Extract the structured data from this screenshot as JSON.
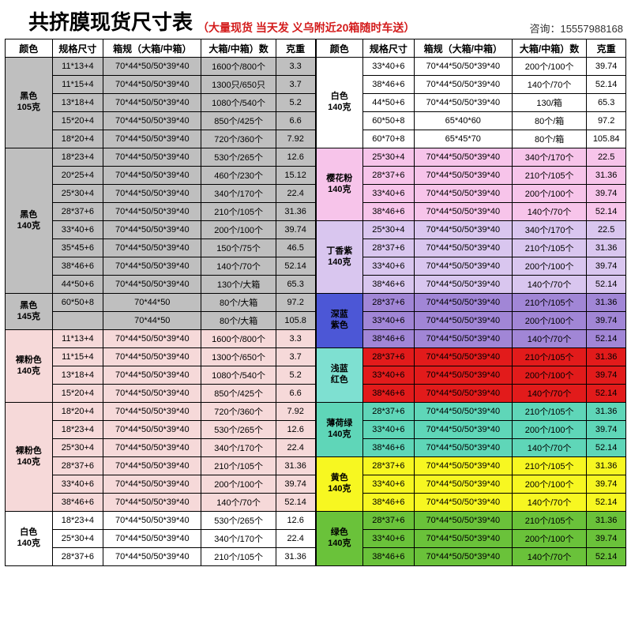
{
  "header": {
    "title": "共挤膜现货尺寸表",
    "subtitle": "（大量现货 当天发 义乌附近20箱随时车送）",
    "contact_label": "咨询：",
    "contact_phone": "15557988168"
  },
  "columns": [
    "颜色",
    "规格尺寸",
    "箱规（大箱/中箱）",
    "大箱/中箱）数",
    "克重"
  ],
  "col_widths_pct": [
    12,
    13,
    25,
    19,
    10
  ],
  "groups_left": [
    {
      "label": "黑色105克",
      "bg": "#bfbfbf",
      "rows": [
        [
          "11*13+4",
          "70*44*50/50*39*40",
          "1600个/800个",
          "3.3"
        ],
        [
          "11*15+4",
          "70*44*50/50*39*40",
          "1300只/650只",
          "3.7"
        ],
        [
          "13*18+4",
          "70*44*50/50*39*40",
          "1080个/540个",
          "5.2"
        ],
        [
          "15*20+4",
          "70*44*50/50*39*40",
          "850个/425个",
          "6.6"
        ],
        [
          "18*20+4",
          "70*44*50/50*39*40",
          "720个/360个",
          "7.92"
        ]
      ]
    },
    {
      "label": "黑色140克",
      "bg": "#bfbfbf",
      "rows": [
        [
          "18*23+4",
          "70*44*50/50*39*40",
          "530个/265个",
          "12.6"
        ],
        [
          "20*25+4",
          "70*44*50/50*39*40",
          "460个/230个",
          "15.12"
        ],
        [
          "25*30+4",
          "70*44*50/50*39*40",
          "340个/170个",
          "22.4"
        ],
        [
          "28*37+6",
          "70*44*50/50*39*40",
          "210个/105个",
          "31.36"
        ],
        [
          "33*40+6",
          "70*44*50/50*39*40",
          "200个/100个",
          "39.74"
        ],
        [
          "35*45+6",
          "70*44*50/50*39*40",
          "150个/75个",
          "46.5"
        ],
        [
          "38*46+6",
          "70*44*50/50*39*40",
          "140个/70个",
          "52.14"
        ],
        [
          "44*50+6",
          "70*44*50/50*39*40",
          "130个/大箱",
          "65.3"
        ]
      ]
    },
    {
      "label": "黑色145克",
      "bg": "#bfbfbf",
      "rows": [
        [
          "60*50+8",
          "70*44*50",
          "80个/大箱",
          "97.2"
        ],
        [
          "",
          "70*44*50",
          "80个/大箱",
          "105.8"
        ]
      ]
    },
    {
      "label": "裸粉色140克",
      "bg": "#f6d9d9",
      "rows": [
        [
          "11*13+4",
          "70*44*50/50*39*40",
          "1600个/800个",
          "3.3"
        ],
        [
          "11*15+4",
          "70*44*50/50*39*40",
          "1300个/650个",
          "3.7"
        ],
        [
          "13*18+4",
          "70*44*50/50*39*40",
          "1080个/540个",
          "5.2"
        ],
        [
          "15*20+4",
          "70*44*50/50*39*40",
          "850个/425个",
          "6.6"
        ]
      ]
    },
    {
      "label": "裸粉色140克",
      "bg": "#f6d9d9",
      "rows": [
        [
          "18*20+4",
          "70*44*50/50*39*40",
          "720个/360个",
          "7.92"
        ],
        [
          "18*23+4",
          "70*44*50/50*39*40",
          "530个/265个",
          "12.6"
        ],
        [
          "25*30+4",
          "70*44*50/50*39*40",
          "340个/170个",
          "22.4"
        ],
        [
          "28*37+6",
          "70*44*50/50*39*40",
          "210个/105个",
          "31.36"
        ],
        [
          "33*40+6",
          "70*44*50/50*39*40",
          "200个/100个",
          "39.74"
        ],
        [
          "38*46+6",
          "70*44*50/50*39*40",
          "140个/70个",
          "52.14"
        ]
      ]
    },
    {
      "label": "白色140克",
      "bg": "#ffffff",
      "rows": [
        [
          "18*23+4",
          "70*44*50/50*39*40",
          "530个/265个",
          "12.6"
        ],
        [
          "25*30+4",
          "70*44*50/50*39*40",
          "340个/170个",
          "22.4"
        ],
        [
          "28*37+6",
          "70*44*50/50*39*40",
          "210个/105个",
          "31.36"
        ]
      ]
    }
  ],
  "groups_right": [
    {
      "label": "白色140克",
      "bg": "#ffffff",
      "rows": [
        [
          "33*40+6",
          "70*44*50/50*39*40",
          "200个/100个",
          "39.74"
        ],
        [
          "38*46+6",
          "70*44*50/50*39*40",
          "140个/70个",
          "52.14"
        ],
        [
          "44*50+6",
          "70*44*50/50*39*40",
          "130/箱",
          "65.3"
        ],
        [
          "60*50+8",
          "65*40*60",
          "80个/箱",
          "97.2"
        ],
        [
          "60*70+8",
          "65*45*70",
          "80个/箱",
          "105.84"
        ]
      ]
    },
    {
      "label": "樱花粉140克",
      "bg": "#f7c4ea",
      "rows": [
        [
          "25*30+4",
          "70*44*50/50*39*40",
          "340个/170个",
          "22.5"
        ],
        [
          "28*37+6",
          "70*44*50/50*39*40",
          "210个/105个",
          "31.36"
        ],
        [
          "33*40+6",
          "70*44*50/50*39*40",
          "200个/100个",
          "39.74"
        ],
        [
          "38*46+6",
          "70*44*50/50*39*40",
          "140个/70个",
          "52.14"
        ]
      ]
    },
    {
      "label": "丁香紫140克",
      "bg": "#d9c6ef",
      "rows": [
        [
          "25*30+4",
          "70*44*50/50*39*40",
          "340个/170个",
          "22.5"
        ],
        [
          "28*37+6",
          "70*44*50/50*39*40",
          "210个/105个",
          "31.36"
        ],
        [
          "33*40+6",
          "70*44*50/50*39*40",
          "200个/100个",
          "39.74"
        ],
        [
          "38*46+6",
          "70*44*50/50*39*40",
          "140个/70个",
          "52.14"
        ]
      ]
    },
    {
      "label": "深蓝紫色",
      "bg_label": "#4c57d6",
      "bg": "#a186d6",
      "rows": [
        [
          "28*37+6",
          "70*44*50/50*39*40",
          "210个/105个",
          "31.36"
        ],
        [
          "33*40+6",
          "70*44*50/50*39*40",
          "200个/100个",
          "39.74"
        ],
        [
          "38*46+6",
          "70*44*50/50*39*40",
          "140个/70个",
          "52.14"
        ]
      ]
    },
    {
      "label": "浅蓝红色",
      "bg_label": "#7ee0d1",
      "bg": "#e21b1b",
      "rows": [
        [
          "28*37+6",
          "70*44*50/50*39*40",
          "210个/105个",
          "31.36"
        ],
        [
          "33*40+6",
          "70*44*50/50*39*40",
          "200个/100个",
          "39.74"
        ],
        [
          "38*46+6",
          "70*44*50/50*39*40",
          "140个/70个",
          "52.14"
        ]
      ]
    },
    {
      "label": "薄荷绿140克",
      "bg": "#5fd6b8",
      "rows": [
        [
          "28*37+6",
          "70*44*50/50*39*40",
          "210个/105个",
          "31.36"
        ],
        [
          "33*40+6",
          "70*44*50/50*39*40",
          "200个/100个",
          "39.74"
        ],
        [
          "38*46+6",
          "70*44*50/50*39*40",
          "140个/70个",
          "52.14"
        ]
      ]
    },
    {
      "label": "黄色140克",
      "bg": "#f7f721",
      "rows": [
        [
          "28*37+6",
          "70*44*50/50*39*40",
          "210个/105个",
          "31.36"
        ],
        [
          "33*40+6",
          "70*44*50/50*39*40",
          "200个/100个",
          "39.74"
        ],
        [
          "38*46+6",
          "70*44*50/50*39*40",
          "140个/70个",
          "52.14"
        ]
      ]
    },
    {
      "label": "绿色140克",
      "bg": "#6ac23a",
      "rows": [
        [
          "28*37+6",
          "70*44*50/50*39*40",
          "210个/105个",
          "31.36"
        ],
        [
          "33*40+6",
          "70*44*50/50*39*40",
          "200个/100个",
          "39.74"
        ],
        [
          "38*46+6",
          "70*44*50/50*39*40",
          "140个/70个",
          "52.14"
        ]
      ]
    }
  ]
}
